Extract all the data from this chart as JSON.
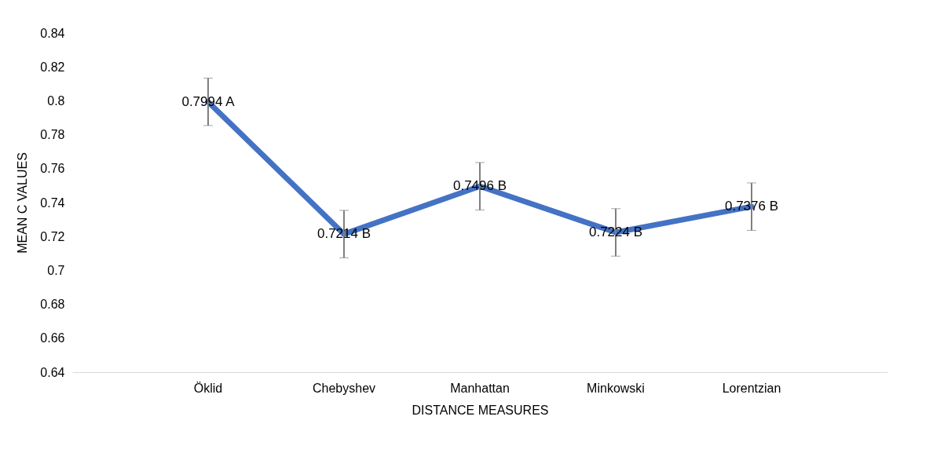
{
  "chart_data": {
    "type": "line",
    "xlabel": "DISTANCE MEASURES",
    "ylabel": "MEAN C VALUES",
    "categories": [
      "Öklid",
      "Chebyshev",
      "Manhattan",
      "Minkowski",
      "Lorentzian"
    ],
    "values": [
      0.7994,
      0.7214,
      0.7496,
      0.7224,
      0.7376
    ],
    "value_labels": [
      "0.7994 A",
      "0.7214 B",
      "0.7496 B",
      "0.7224 B",
      "0.7376 B"
    ],
    "errors": [
      0.014,
      0.014,
      0.014,
      0.014,
      0.014
    ],
    "color": "#4472c4",
    "ylim": [
      0.64,
      0.84
    ],
    "yticks": [
      0.64,
      0.66,
      0.68,
      0.7,
      0.72,
      0.74,
      0.76,
      0.78,
      0.8,
      0.82,
      0.84
    ],
    "grid": false,
    "marker": "none",
    "line_style": "solid"
  }
}
